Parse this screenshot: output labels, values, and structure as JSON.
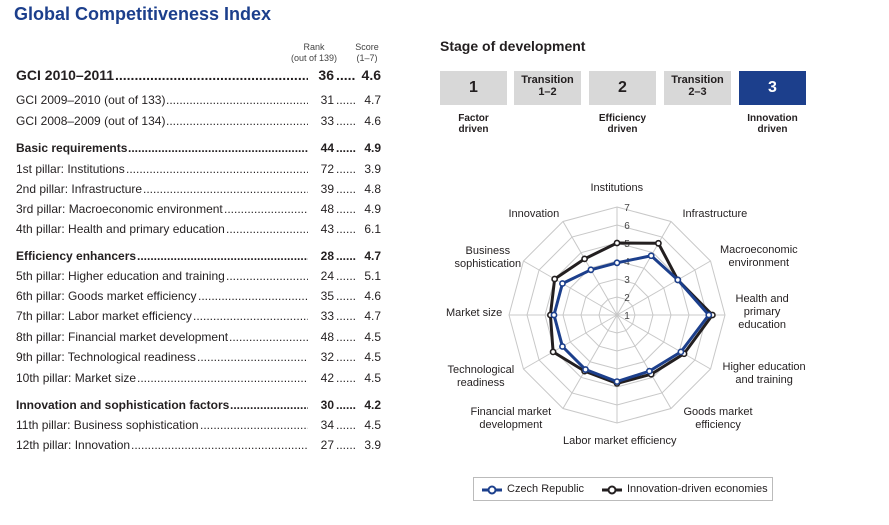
{
  "title": "Global Competitiveness Index",
  "col_headers": {
    "rank": "Rank",
    "rank_sub": "(out of 139)",
    "score": "Score",
    "score_sub": "(1–7)"
  },
  "rows": [
    {
      "label": "GCI 2010–2011",
      "rank": "36",
      "score": "4.6",
      "style": "big"
    },
    {
      "label": "GCI 2009–2010 (out of 133)",
      "rank": "31",
      "score": "4.7",
      "style": "normal"
    },
    {
      "label": "GCI 2008–2009 (out of 134)",
      "rank": "33",
      "score": "4.6",
      "style": "normal"
    },
    {
      "label": "Basic requirements",
      "rank": "44",
      "score": "4.9",
      "style": "bold"
    },
    {
      "label": "1st pillar: Institutions",
      "rank": "72",
      "score": "3.9",
      "style": "normal"
    },
    {
      "label": "2nd pillar: Infrastructure",
      "rank": "39",
      "score": "4.8",
      "style": "normal"
    },
    {
      "label": "3rd pillar: Macroeconomic environment",
      "rank": "48",
      "score": "4.9",
      "style": "normal"
    },
    {
      "label": "4th pillar: Health and primary education",
      "rank": "43",
      "score": "6.1",
      "style": "normal"
    },
    {
      "label": "Efficiency enhancers",
      "rank": "28",
      "score": "4.7",
      "style": "bold"
    },
    {
      "label": "5th pillar: Higher education and training",
      "rank": "24",
      "score": "5.1",
      "style": "normal"
    },
    {
      "label": "6th pillar: Goods market efficiency",
      "rank": "35",
      "score": "4.6",
      "style": "normal"
    },
    {
      "label": "7th pillar: Labor market efficiency",
      "rank": "33",
      "score": "4.7",
      "style": "normal"
    },
    {
      "label": "8th pillar: Financial market development",
      "rank": "48",
      "score": "4.5",
      "style": "normal"
    },
    {
      "label": "9th pillar: Technological readiness",
      "rank": "32",
      "score": "4.5",
      "style": "normal"
    },
    {
      "label": "10th pillar: Market size",
      "rank": "42",
      "score": "4.5",
      "style": "normal"
    },
    {
      "label": "Innovation and sophistication factors",
      "rank": "30",
      "score": "4.2",
      "style": "bold"
    },
    {
      "label": "11th pillar: Business sophistication",
      "rank": "34",
      "score": "4.5",
      "style": "normal"
    },
    {
      "label": "12th pillar: Innovation",
      "rank": "27",
      "score": "3.9",
      "style": "normal"
    }
  ],
  "stage": {
    "title": "Stage of development",
    "boxes": [
      {
        "text": "1",
        "kind": "num",
        "active": false
      },
      {
        "text": "Transition",
        "text2": "1–2",
        "kind": "trans",
        "active": false
      },
      {
        "text": "2",
        "kind": "num",
        "active": false
      },
      {
        "text": "Transition",
        "text2": "2–3",
        "kind": "trans",
        "active": false
      },
      {
        "text": "3",
        "kind": "num",
        "active": true
      }
    ],
    "labels": [
      {
        "line1": "Factor",
        "line2": "driven"
      },
      {
        "line1": "Efficiency",
        "line2": "driven"
      },
      {
        "line1": "Innovation",
        "line2": "driven"
      }
    ]
  },
  "chart_data": {
    "type": "radar",
    "axes": [
      {
        "line1": "Institutions",
        "line2": "",
        "line3": ""
      },
      {
        "line1": "Infrastructure",
        "line2": "",
        "line3": ""
      },
      {
        "line1": "Macroeconomic",
        "line2": "environment",
        "line3": ""
      },
      {
        "line1": "Health and",
        "line2": "primary",
        "line3": "education"
      },
      {
        "line1": "Higher education",
        "line2": "and training",
        "line3": ""
      },
      {
        "line1": "Goods market",
        "line2": "efficiency",
        "line3": ""
      },
      {
        "line1": "Labor market efficiency",
        "line2": "",
        "line3": ""
      },
      {
        "line1": "Financial market",
        "line2": "development",
        "line3": ""
      },
      {
        "line1": "Technological",
        "line2": "readiness",
        "line3": ""
      },
      {
        "line1": "Market size",
        "line2": "",
        "line3": ""
      },
      {
        "line1": "Business",
        "line2": "sophistication",
        "line3": ""
      },
      {
        "line1": "Innovation",
        "line2": "",
        "line3": ""
      }
    ],
    "range": [
      1,
      7
    ],
    "ticks": [
      "1",
      "2",
      "3",
      "4",
      "5",
      "6",
      "7"
    ],
    "series": [
      {
        "name": "Czech Republic",
        "color": "#1c3f8c",
        "values": [
          3.9,
          4.8,
          4.9,
          6.1,
          5.1,
          4.6,
          4.7,
          4.5,
          4.5,
          4.5,
          4.5,
          3.9
        ]
      },
      {
        "name": "Innovation-driven economies",
        "color": "#231f20",
        "values": [
          5.0,
          5.6,
          4.9,
          6.3,
          5.3,
          4.8,
          4.8,
          4.6,
          5.1,
          4.7,
          5.0,
          4.6
        ]
      }
    ],
    "legend_position": "bottom"
  },
  "colors": {
    "accent": "#1c3f8c",
    "grid": "#c8c8c8",
    "box": "#d8d8d8"
  }
}
